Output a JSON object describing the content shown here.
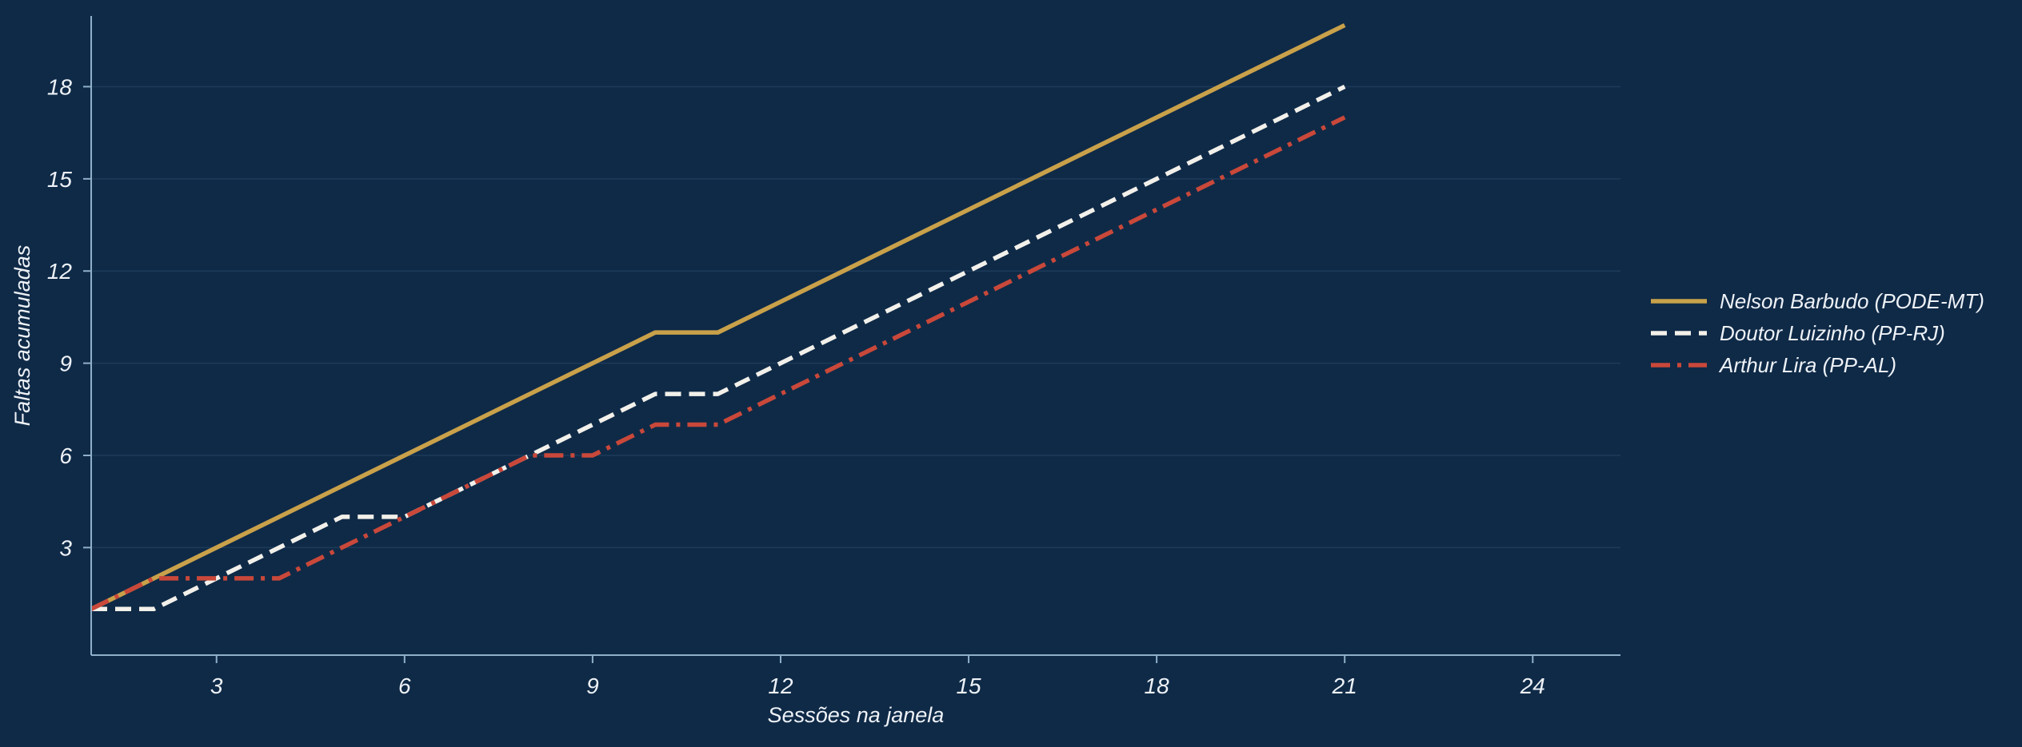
{
  "chart_data": {
    "type": "line",
    "xlabel": "Sessões na janela",
    "ylabel": "Faltas acumuladas",
    "xlim": [
      1,
      25.4
    ],
    "ylim": [
      -0.5,
      20.3
    ],
    "xticks": [
      3,
      6,
      9,
      12,
      15,
      18,
      21,
      24
    ],
    "yticks": [
      3,
      6,
      9,
      12,
      15,
      18
    ],
    "grid": "horizontal",
    "legend_position": "right",
    "x": [
      1,
      2,
      3,
      4,
      5,
      6,
      7,
      8,
      9,
      10,
      11,
      12,
      13,
      14,
      15,
      16,
      17,
      18,
      19,
      20,
      21
    ],
    "series": [
      {
        "name": "Nelson Barbudo (PODE-MT)",
        "color": "#c9a14a",
        "line_style": "solid",
        "values": [
          1,
          2,
          3,
          4,
          5,
          6,
          7,
          8,
          9,
          10,
          10,
          11,
          12,
          13,
          14,
          15,
          16,
          17,
          18,
          19,
          20
        ]
      },
      {
        "name": "Doutor Luizinho (PP-RJ)",
        "color": "#f2f0ea",
        "line_style": "dashed",
        "values": [
          1,
          1,
          2,
          3,
          4,
          4,
          5,
          6,
          7,
          8,
          8,
          9,
          10,
          11,
          12,
          13,
          14,
          15,
          16,
          17,
          18
        ]
      },
      {
        "name": "Arthur Lira (PP-AL)",
        "color": "#c9483a",
        "line_style": "dashdot",
        "values": [
          1,
          2,
          2,
          2,
          3,
          4,
          5,
          6,
          6,
          7,
          7,
          8,
          9,
          10,
          11,
          12,
          13,
          14,
          15,
          16,
          17
        ]
      }
    ]
  },
  "colors": {
    "background": "#0f2a47",
    "axis": "#8fb0c8",
    "grid": "#1d3a5a",
    "text": "#eef2f7"
  }
}
